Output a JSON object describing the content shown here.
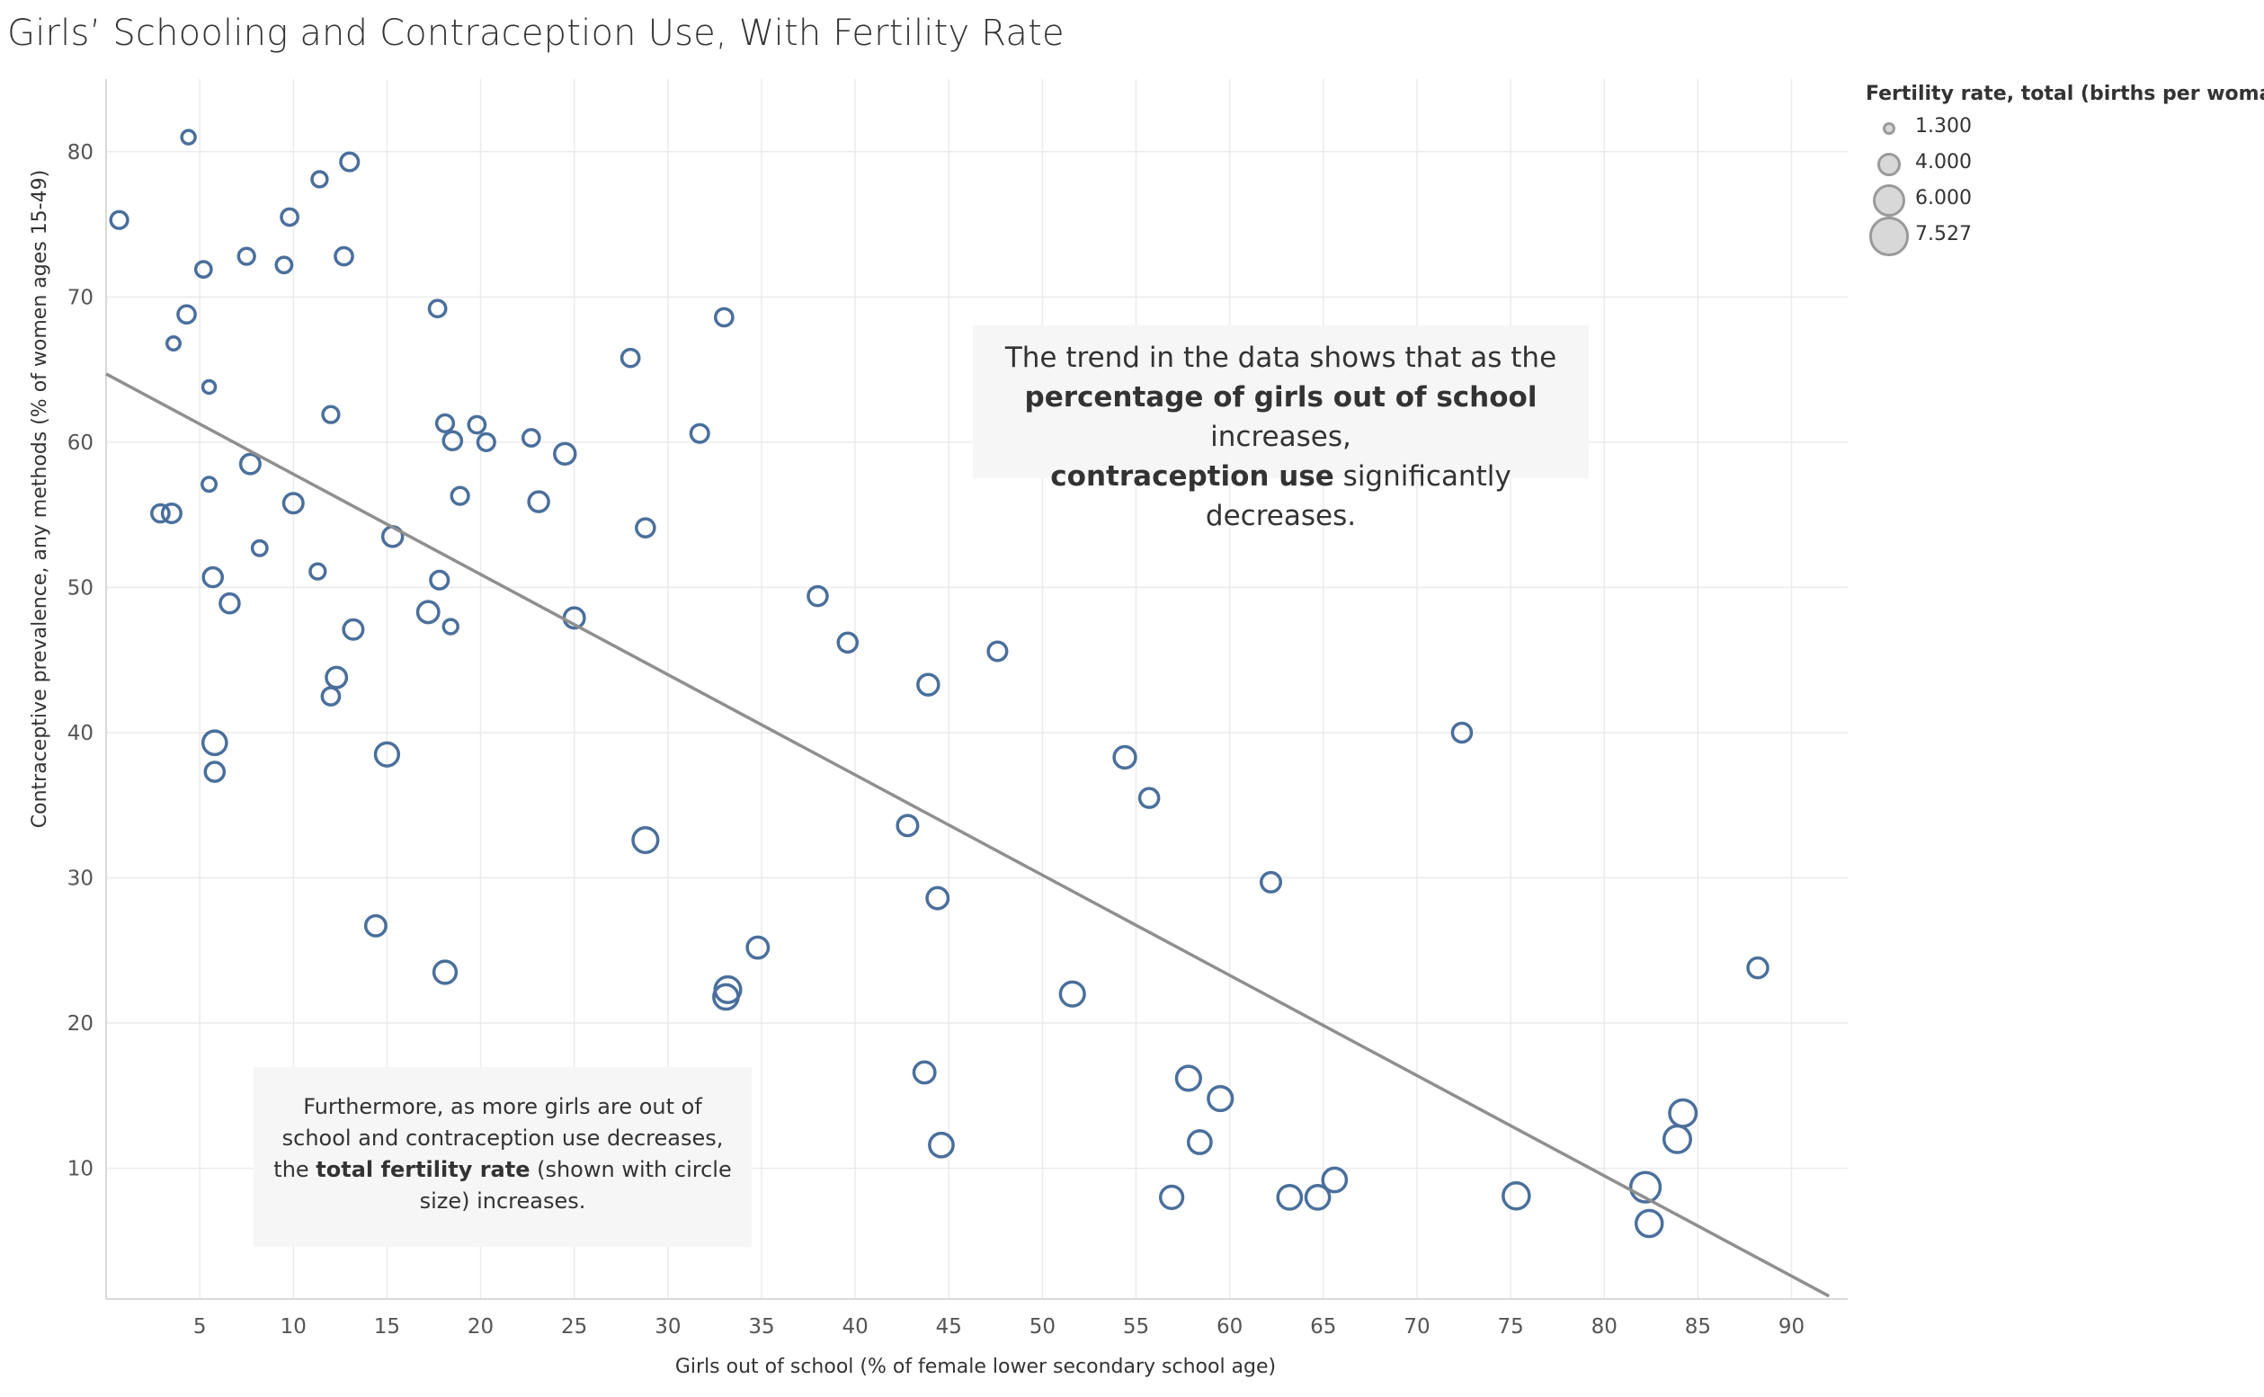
{
  "title": "Girls’ Schooling and Contraception Use, With Fertility Rate",
  "colors": {
    "marker": "#4a6f9c",
    "trend": "#8f8f8f",
    "grid": "#ebebeb",
    "annotation_bg": "#f6f6f6"
  },
  "annotations": {
    "trend": {
      "l1": "The trend in the data shows that as the",
      "l2_bold": "percentage of girls out of school",
      "l2_rest": " increases,",
      "l3_bold": "contraception use",
      "l3_rest": " significantly decreases."
    },
    "fertility": {
      "l1": "Furthermore, as more girls are out of",
      "l2": "school and contraception use decreases,",
      "l3_pre": "the ",
      "l3_bold": "total fertility rate",
      "l3_rest": " (shown with circle",
      "l4": "size) increases."
    }
  },
  "chart_data": {
    "type": "scatter",
    "title": "Girls’ Schooling and Contraception Use, With Fertility Rate",
    "xlabel": "Girls out of school (% of female lower secondary school age)",
    "ylabel": "Contraceptive prevalence, any methods (% of women ages 15-49)",
    "xlim": [
      0,
      93
    ],
    "ylim": [
      1,
      85
    ],
    "x_ticks": [
      5,
      10,
      15,
      20,
      25,
      30,
      35,
      40,
      45,
      50,
      55,
      60,
      65,
      70,
      75,
      80,
      85,
      90
    ],
    "y_ticks": [
      10,
      20,
      30,
      40,
      50,
      60,
      70,
      80
    ],
    "grid": true,
    "size_legend": {
      "title": "Fertility rate, total (births per woman)",
      "placement": "top-right",
      "entries": [
        {
          "label": "1.300",
          "value": 1.3
        },
        {
          "label": "4.000",
          "value": 4.0
        },
        {
          "label": "6.000",
          "value": 6.0
        },
        {
          "label": "7.527",
          "value": 7.527
        }
      ]
    },
    "trend_line": {
      "x": [
        0,
        92
      ],
      "y": [
        64.7,
        1.2
      ]
    },
    "points": [
      {
        "x": 0.7,
        "y": 75.3,
        "fertility": 2.3
      },
      {
        "x": 4.4,
        "y": 81.0,
        "fertility": 1.5
      },
      {
        "x": 13.0,
        "y": 79.3,
        "fertility": 2.5
      },
      {
        "x": 11.4,
        "y": 78.1,
        "fertility": 1.9
      },
      {
        "x": 9.8,
        "y": 75.5,
        "fertility": 2.2
      },
      {
        "x": 7.5,
        "y": 72.8,
        "fertility": 2.1
      },
      {
        "x": 9.5,
        "y": 72.2,
        "fertility": 2.0
      },
      {
        "x": 12.7,
        "y": 72.8,
        "fertility": 2.4
      },
      {
        "x": 5.2,
        "y": 71.9,
        "fertility": 2.0
      },
      {
        "x": 4.3,
        "y": 68.8,
        "fertility": 2.4
      },
      {
        "x": 3.6,
        "y": 66.8,
        "fertility": 1.4
      },
      {
        "x": 17.7,
        "y": 69.2,
        "fertility": 2.2
      },
      {
        "x": 33.0,
        "y": 68.6,
        "fertility": 2.4
      },
      {
        "x": 28.0,
        "y": 65.8,
        "fertility": 2.4
      },
      {
        "x": 5.5,
        "y": 63.8,
        "fertility": 1.3
      },
      {
        "x": 12.0,
        "y": 61.9,
        "fertility": 2.1
      },
      {
        "x": 18.1,
        "y": 61.3,
        "fertility": 2.3
      },
      {
        "x": 19.8,
        "y": 61.2,
        "fertility": 2.2
      },
      {
        "x": 18.5,
        "y": 60.1,
        "fertility": 2.6
      },
      {
        "x": 20.3,
        "y": 60.0,
        "fertility": 2.3
      },
      {
        "x": 22.7,
        "y": 60.3,
        "fertility": 2.2
      },
      {
        "x": 24.5,
        "y": 59.2,
        "fertility": 3.2
      },
      {
        "x": 31.7,
        "y": 60.6,
        "fertility": 2.5
      },
      {
        "x": 7.7,
        "y": 58.5,
        "fertility": 2.9
      },
      {
        "x": 5.5,
        "y": 57.1,
        "fertility": 1.6
      },
      {
        "x": 10.0,
        "y": 55.8,
        "fertility": 2.9
      },
      {
        "x": 18.9,
        "y": 56.3,
        "fertility": 2.3
      },
      {
        "x": 23.1,
        "y": 55.9,
        "fertility": 3.0
      },
      {
        "x": 2.9,
        "y": 55.1,
        "fertility": 2.4
      },
      {
        "x": 3.5,
        "y": 55.1,
        "fertility": 2.7
      },
      {
        "x": 15.3,
        "y": 53.5,
        "fertility": 3.0
      },
      {
        "x": 28.8,
        "y": 54.1,
        "fertility": 2.6
      },
      {
        "x": 8.2,
        "y": 52.7,
        "fertility": 1.8
      },
      {
        "x": 11.3,
        "y": 51.1,
        "fertility": 1.9
      },
      {
        "x": 5.7,
        "y": 50.7,
        "fertility": 2.8
      },
      {
        "x": 17.8,
        "y": 50.5,
        "fertility": 2.5
      },
      {
        "x": 6.6,
        "y": 48.9,
        "fertility": 2.8
      },
      {
        "x": 17.2,
        "y": 48.3,
        "fertility": 3.3
      },
      {
        "x": 18.4,
        "y": 47.3,
        "fertility": 1.7
      },
      {
        "x": 13.2,
        "y": 47.1,
        "fertility": 2.9
      },
      {
        "x": 25.0,
        "y": 47.9,
        "fertility": 3.1
      },
      {
        "x": 38.0,
        "y": 49.4,
        "fertility": 2.8
      },
      {
        "x": 39.6,
        "y": 46.2,
        "fertility": 2.8
      },
      {
        "x": 47.6,
        "y": 45.6,
        "fertility": 2.7
      },
      {
        "x": 12.3,
        "y": 43.8,
        "fertility": 3.1
      },
      {
        "x": 43.9,
        "y": 43.3,
        "fertility": 3.2
      },
      {
        "x": 12.0,
        "y": 42.5,
        "fertility": 2.4
      },
      {
        "x": 5.8,
        "y": 39.3,
        "fertility": 3.9
      },
      {
        "x": 15.0,
        "y": 38.5,
        "fertility": 3.8
      },
      {
        "x": 72.4,
        "y": 40.0,
        "fertility": 2.8
      },
      {
        "x": 5.8,
        "y": 37.3,
        "fertility": 2.8
      },
      {
        "x": 54.4,
        "y": 38.3,
        "fertility": 3.4
      },
      {
        "x": 55.7,
        "y": 35.5,
        "fertility": 2.8
      },
      {
        "x": 42.8,
        "y": 33.6,
        "fertility": 3.1
      },
      {
        "x": 28.8,
        "y": 32.6,
        "fertility": 4.2
      },
      {
        "x": 62.2,
        "y": 29.7,
        "fertility": 2.9
      },
      {
        "x": 44.4,
        "y": 28.6,
        "fertility": 3.3
      },
      {
        "x": 14.4,
        "y": 26.7,
        "fertility": 3.1
      },
      {
        "x": 34.8,
        "y": 25.2,
        "fertility": 3.3
      },
      {
        "x": 88.2,
        "y": 23.8,
        "fertility": 3.0
      },
      {
        "x": 18.1,
        "y": 23.5,
        "fertility": 3.6
      },
      {
        "x": 33.2,
        "y": 22.3,
        "fertility": 4.4
      },
      {
        "x": 33.1,
        "y": 21.8,
        "fertility": 4.1
      },
      {
        "x": 51.6,
        "y": 22.0,
        "fertility": 4.0
      },
      {
        "x": 43.7,
        "y": 16.6,
        "fertility": 3.3
      },
      {
        "x": 57.8,
        "y": 16.2,
        "fertility": 4.0
      },
      {
        "x": 59.5,
        "y": 14.8,
        "fertility": 4.0
      },
      {
        "x": 84.2,
        "y": 13.8,
        "fertility": 4.6
      },
      {
        "x": 58.4,
        "y": 11.8,
        "fertility": 3.7
      },
      {
        "x": 83.9,
        "y": 12.0,
        "fertility": 4.6
      },
      {
        "x": 44.6,
        "y": 11.6,
        "fertility": 3.9
      },
      {
        "x": 65.6,
        "y": 9.2,
        "fertility": 3.9
      },
      {
        "x": 82.2,
        "y": 8.7,
        "fertility": 5.3
      },
      {
        "x": 56.9,
        "y": 8.0,
        "fertility": 3.6
      },
      {
        "x": 63.2,
        "y": 8.0,
        "fertility": 3.9
      },
      {
        "x": 64.7,
        "y": 8.0,
        "fertility": 3.9
      },
      {
        "x": 75.3,
        "y": 8.1,
        "fertility": 4.5
      },
      {
        "x": 82.4,
        "y": 6.2,
        "fertility": 4.5
      }
    ]
  }
}
